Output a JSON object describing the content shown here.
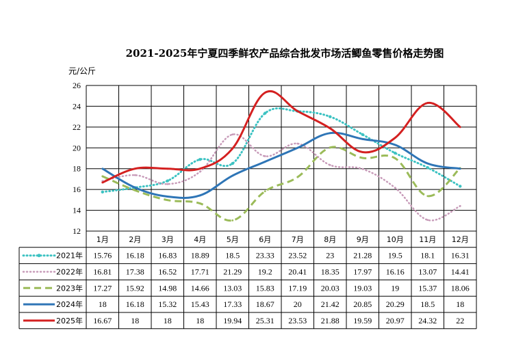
{
  "chart_data": {
    "type": "line",
    "title": "2021-2025年宁夏四季鲜农产品综合批发市场活鲫鱼零售价格走势图",
    "ylabel": "元/公斤",
    "ylim": [
      12,
      26
    ],
    "yticks": [
      12,
      14,
      16,
      18,
      20,
      22,
      24,
      26
    ],
    "grid": true,
    "legend": "table-left",
    "categories": [
      "1月",
      "2月",
      "3月",
      "4月",
      "5月",
      "6月",
      "7月",
      "8月",
      "9月",
      "10月",
      "11月",
      "12月"
    ],
    "series": [
      {
        "name": "2021年",
        "color": "#3CC2C2",
        "style": "dot-marker",
        "values": [
          "15.76",
          "16.18",
          "16.83",
          "18.89",
          "18.5",
          "23.33",
          "23.52",
          "23",
          "21.28",
          "19.5",
          "18.1",
          "16.31"
        ]
      },
      {
        "name": "2022年",
        "color": "#C79AB8",
        "style": "dot",
        "values": [
          "16.81",
          "17.38",
          "16.52",
          "17.71",
          "21.29",
          "19.2",
          "20.41",
          "18.35",
          "17.97",
          "16.16",
          "13.07",
          "14.41"
        ]
      },
      {
        "name": "2023年",
        "color": "#9BBB59",
        "style": "dash",
        "values": [
          "17.27",
          "15.92",
          "14.98",
          "14.66",
          "13.03",
          "15.83",
          "17.19",
          "20.03",
          "19.03",
          "19",
          "15.37",
          "18.06"
        ]
      },
      {
        "name": "2024年",
        "color": "#2E75B6",
        "style": "solid",
        "values": [
          "18",
          "16.18",
          "15.32",
          "15.43",
          "17.33",
          "18.67",
          "20",
          "21.42",
          "20.85",
          "20.29",
          "18.5",
          "18"
        ]
      },
      {
        "name": "2025年",
        "color": "#D42020",
        "style": "solid",
        "values": [
          "16.67",
          "18",
          "18",
          "18",
          "19.94",
          "25.31",
          "23.53",
          "21.88",
          "19.59",
          "20.97",
          "24.32",
          "22"
        ]
      }
    ]
  }
}
